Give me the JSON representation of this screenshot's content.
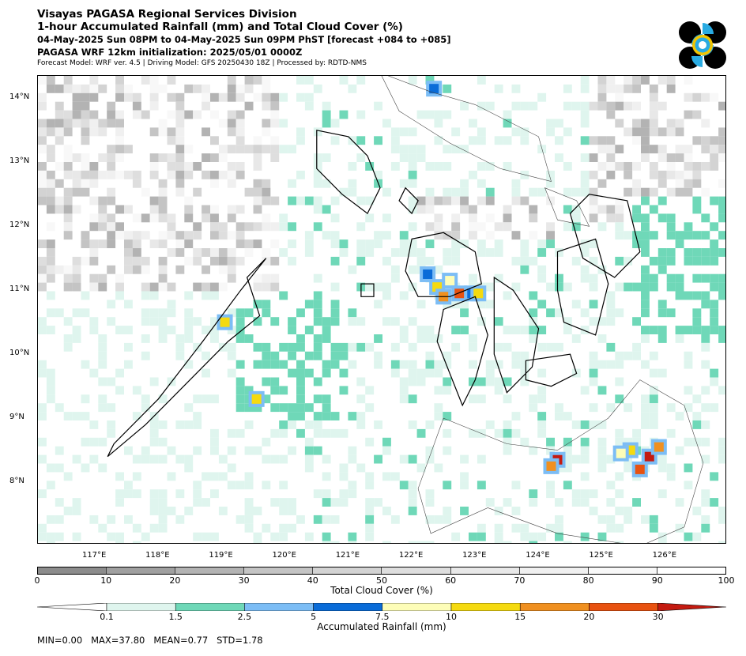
{
  "header": {
    "line1": "Visayas PAGASA Regional Services Division",
    "line2": "1-hour Accumulated Rainfall (mm) and Total Cloud Cover (%)",
    "line3": "04-May-2025 Sun 08PM to 04-May-2025 Sun 09PM PhST [forecast +084 to +085]",
    "line4": "PAGASA WRF 12km initialization: 2025/05/01 0000Z",
    "line5": "Forecast Model: WRF ver. 4.5 | Driving Model: GFS 20250430 18Z | Processed by: RDTD-NMS"
  },
  "logo": {
    "icon": "pagasa-seal-icon",
    "colors": [
      "#000000",
      "#29abe2",
      "#f2c500"
    ]
  },
  "map": {
    "lat_labels": [
      "14°N",
      "13°N",
      "12°N",
      "11°N",
      "10°N",
      "9°N",
      "8°N"
    ],
    "lat_values": [
      14,
      13,
      12,
      11,
      10,
      9,
      8
    ],
    "lon_labels": [
      "117°E",
      "118°E",
      "119°E",
      "120°E",
      "121°E",
      "122°E",
      "123°E",
      "124°E",
      "125°E",
      "126°E"
    ],
    "lon_values": [
      117,
      118,
      119,
      120,
      121,
      122,
      123,
      124,
      125,
      126
    ],
    "lat_range": [
      7.05,
      14.35
    ],
    "lon_range": [
      116.1,
      126.95
    ]
  },
  "cloud_colorbar": {
    "label": "Total Cloud Cover (%)",
    "ticks": [
      "0",
      "10",
      "20",
      "30",
      "40",
      "50",
      "60",
      "70",
      "80",
      "90",
      "100"
    ],
    "colors": [
      "#8c8c8c",
      "#a0a0a0",
      "#b3b3b3",
      "#c4c4c4",
      "#d3d3d3",
      "#dedede",
      "#e8e8e8",
      "#f0f0f0",
      "#f8f8f8",
      "#ffffff"
    ]
  },
  "rain_colorbar": {
    "label": "Accumulated Rainfall (mm)",
    "ticks": [
      "0.1",
      "1.5",
      "2.5",
      "5",
      "7.5",
      "10",
      "15",
      "20",
      "30"
    ],
    "colors": [
      "#dff5ee",
      "#6fd8b8",
      "#7cbdf5",
      "#0a6cd8",
      "#fdfdb8",
      "#f5da10",
      "#f09020",
      "#e85210",
      "#c41a10"
    ],
    "under_color": "#ffffff"
  },
  "stats": {
    "text": "MIN=0.00   MAX=37.80   MEAN=0.77   STD=1.78"
  },
  "chart_data": {
    "type": "heatmap",
    "title": "1-hour Accumulated Rainfall (mm) and Total Cloud Cover (%)",
    "xlabel": "",
    "ylabel": "",
    "stats": {
      "min": 0.0,
      "max": 37.8,
      "mean": 0.77,
      "std": 1.78
    },
    "rain_cells": [
      {
        "lon": 122.25,
        "lat": 11.25,
        "mm": 5.0
      },
      {
        "lon": 122.4,
        "lat": 11.05,
        "mm": 10.0
      },
      {
        "lon": 122.5,
        "lat": 10.9,
        "mm": 15.0
      },
      {
        "lon": 122.6,
        "lat": 11.15,
        "mm": 7.5
      },
      {
        "lon": 122.75,
        "lat": 10.95,
        "mm": 20.0
      },
      {
        "lon": 122.95,
        "lat": 10.95,
        "mm": 5.0
      },
      {
        "lon": 123.05,
        "lat": 10.95,
        "mm": 10.0
      },
      {
        "lon": 119.05,
        "lat": 10.5,
        "mm": 10.0
      },
      {
        "lon": 119.55,
        "lat": 9.3,
        "mm": 10.0
      },
      {
        "lon": 124.3,
        "lat": 8.35,
        "mm": 30.0
      },
      {
        "lon": 124.2,
        "lat": 8.25,
        "mm": 15.0
      },
      {
        "lon": 125.75,
        "lat": 8.4,
        "mm": 37.8
      },
      {
        "lon": 125.6,
        "lat": 8.2,
        "mm": 20.0
      },
      {
        "lon": 125.45,
        "lat": 8.5,
        "mm": 10.0
      },
      {
        "lon": 125.9,
        "lat": 8.55,
        "mm": 15.0
      },
      {
        "lon": 125.3,
        "lat": 8.45,
        "mm": 7.5
      },
      {
        "lon": 122.35,
        "lat": 14.15,
        "mm": 5.0
      }
    ]
  }
}
